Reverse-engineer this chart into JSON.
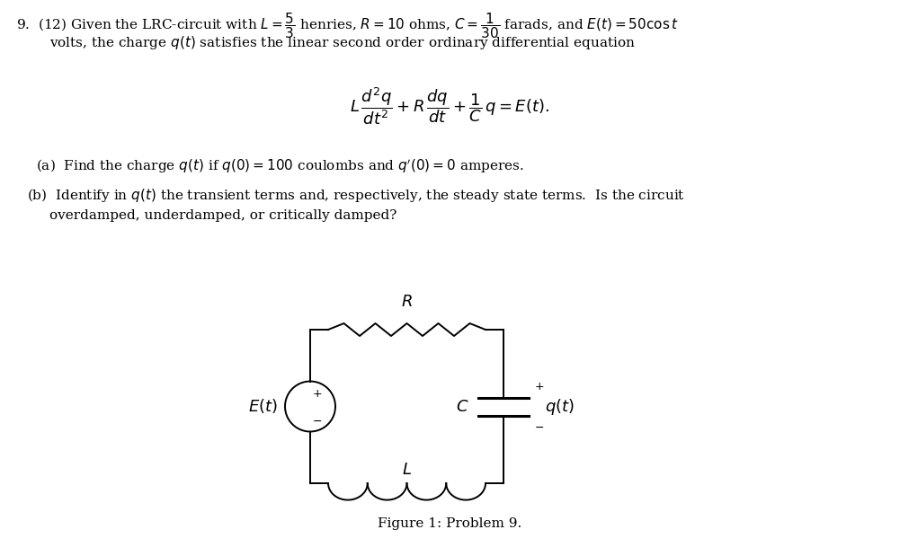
{
  "bg_color": "#ffffff",
  "text_color": "#000000",
  "line_color": "#000000",
  "fig_width": 10.01,
  "fig_height": 6.19,
  "dpi": 100,
  "title_text": "Figure 1: Problem 9.",
  "header_line1": "9.  (12) Given the LRC-circuit with $L = \\dfrac{5}{3}$ henries, $R = 10$ ohms, $C = \\dfrac{1}{30}$ farads, and $E(t) = 50\\cos t$",
  "header_line2": "volts, the charge $q(t)$ satisfies the linear second order ordinary differential equation",
  "equation": "$L\\,\\dfrac{d^2q}{dt^2} + R\\,\\dfrac{dq}{dt} + \\dfrac{1}{C}\\,q = E(t).$",
  "part_a": "(a)  Find the charge $q(t)$ if $q(0) = 100$ coulombs and $q'(0) = 0$ amperes.",
  "part_b1": "(b)  Identify in $q(t)$ the transient terms and, respectively, the steady state terms.  Is the circuit",
  "part_b2": "overdamped, underdamped, or critically damped?"
}
